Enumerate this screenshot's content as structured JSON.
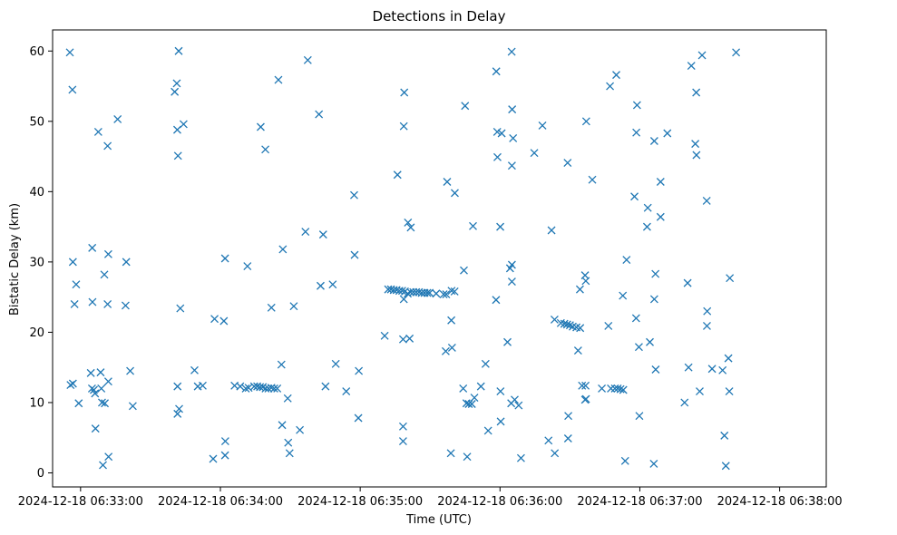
{
  "chart_data": {
    "type": "scatter",
    "title": "Detections in Delay",
    "xlabel": "Time (UTC)",
    "ylabel": "Bistatic Delay (km)",
    "marker": "x",
    "color": "#1f77b4",
    "grid": false,
    "x_unit": "seconds after 2024-12-18 06:33:00",
    "xlim": [
      -12,
      320
    ],
    "ylim": [
      -2,
      63
    ],
    "x_ticks": [
      {
        "value": 0,
        "label": "2024-12-18 06:33:00"
      },
      {
        "value": 60,
        "label": "2024-12-18 06:34:00"
      },
      {
        "value": 120,
        "label": "2024-12-18 06:35:00"
      },
      {
        "value": 180,
        "label": "2024-12-18 06:36:00"
      },
      {
        "value": 240,
        "label": "2024-12-18 06:37:00"
      },
      {
        "value": 300,
        "label": "2024-12-18 06:38:00"
      }
    ],
    "y_ticks": [
      {
        "value": 0,
        "label": "0"
      },
      {
        "value": 10,
        "label": "10"
      },
      {
        "value": 20,
        "label": "20"
      },
      {
        "value": 30,
        "label": "30"
      },
      {
        "value": 40,
        "label": "40"
      },
      {
        "value": 50,
        "label": "50"
      },
      {
        "value": 60,
        "label": "60"
      }
    ],
    "points": [
      [
        -4.6,
        59.8
      ],
      [
        -3.5,
        54.5
      ],
      [
        -3.3,
        30.0
      ],
      [
        -2.6,
        24.0
      ],
      [
        -1.9,
        26.8
      ],
      [
        -4.3,
        12.5
      ],
      [
        -3.3,
        12.7
      ],
      [
        -0.8,
        9.9
      ],
      [
        5.0,
        32.0
      ],
      [
        5.1,
        24.3
      ],
      [
        4.4,
        14.2
      ],
      [
        4.9,
        12.0
      ],
      [
        5.7,
        11.8
      ],
      [
        6.2,
        11.3
      ],
      [
        8.6,
        14.3
      ],
      [
        8.9,
        12.0
      ],
      [
        9.2,
        10.0
      ],
      [
        10.4,
        9.9
      ],
      [
        6.4,
        6.3
      ],
      [
        10.2,
        28.2
      ],
      [
        11.9,
        31.1
      ],
      [
        11.6,
        24.0
      ],
      [
        11.9,
        13.0
      ],
      [
        12.0,
        2.3
      ],
      [
        9.6,
        1.1
      ],
      [
        7.6,
        48.5
      ],
      [
        11.6,
        46.5
      ],
      [
        15.9,
        50.3
      ],
      [
        19.6,
        30.0
      ],
      [
        19.3,
        23.8
      ],
      [
        21.3,
        14.5
      ],
      [
        22.4,
        9.5
      ],
      [
        40.4,
        54.2
      ],
      [
        41.3,
        55.4
      ],
      [
        41.5,
        48.8
      ],
      [
        42.1,
        60.0
      ],
      [
        41.8,
        45.1
      ],
      [
        44.2,
        49.6
      ],
      [
        42.8,
        23.4
      ],
      [
        41.6,
        12.3
      ],
      [
        41.6,
        8.4
      ],
      [
        42.3,
        9.1
      ],
      [
        48.9,
        14.6
      ],
      [
        50.3,
        12.3
      ],
      [
        52.4,
        12.4
      ],
      [
        57.5,
        21.9
      ],
      [
        61.5,
        21.6
      ],
      [
        56.9,
        2.0
      ],
      [
        62.0,
        30.5
      ],
      [
        62.1,
        4.5
      ],
      [
        62.0,
        2.5
      ],
      [
        66.1,
        12.4
      ],
      [
        68.5,
        12.3
      ],
      [
        70.9,
        12.0
      ],
      [
        72.1,
        12.1
      ],
      [
        74.5,
        12.3
      ],
      [
        75.8,
        12.3
      ],
      [
        77.0,
        12.2
      ],
      [
        78.2,
        12.2
      ],
      [
        79.4,
        12.0
      ],
      [
        80.6,
        12.0
      ],
      [
        81.9,
        12.1
      ],
      [
        83.1,
        12.0
      ],
      [
        84.4,
        12.0
      ],
      [
        71.6,
        29.4
      ],
      [
        77.3,
        49.2
      ],
      [
        79.3,
        46.0
      ],
      [
        81.9,
        23.5
      ],
      [
        84.9,
        55.9
      ],
      [
        86.8,
        31.8
      ],
      [
        86.2,
        15.4
      ],
      [
        86.5,
        6.8
      ],
      [
        88.9,
        10.6
      ],
      [
        89.1,
        4.3
      ],
      [
        89.7,
        2.8
      ],
      [
        91.5,
        23.7
      ],
      [
        94.1,
        6.1
      ],
      [
        96.5,
        34.3
      ],
      [
        97.5,
        58.7
      ],
      [
        102.3,
        51.0
      ],
      [
        103.0,
        26.6
      ],
      [
        104.1,
        33.9
      ],
      [
        105.1,
        12.3
      ],
      [
        108.2,
        26.8
      ],
      [
        109.5,
        15.5
      ],
      [
        114.0,
        11.6
      ],
      [
        117.6,
        31.0
      ],
      [
        117.4,
        39.5
      ],
      [
        119.4,
        14.5
      ],
      [
        119.2,
        7.8
      ],
      [
        130.5,
        19.5
      ],
      [
        132.0,
        26.1
      ],
      [
        133.2,
        26.1
      ],
      [
        134.4,
        26.0
      ],
      [
        135.6,
        26.0
      ],
      [
        136.8,
        25.9
      ],
      [
        138.0,
        25.9
      ],
      [
        139.2,
        25.8
      ],
      [
        140.4,
        25.5
      ],
      [
        141.6,
        25.7
      ],
      [
        142.8,
        25.7
      ],
      [
        144.0,
        25.7
      ],
      [
        145.2,
        25.7
      ],
      [
        146.4,
        25.6
      ],
      [
        147.6,
        25.6
      ],
      [
        148.8,
        25.6
      ],
      [
        149.8,
        25.6
      ],
      [
        152.6,
        25.5
      ],
      [
        155.8,
        25.4
      ],
      [
        156.9,
        25.4
      ],
      [
        159.2,
        25.9
      ],
      [
        160.5,
        25.8
      ],
      [
        138.7,
        24.7
      ],
      [
        136.0,
        42.4
      ],
      [
        138.9,
        54.1
      ],
      [
        138.7,
        49.3
      ],
      [
        140.5,
        35.6
      ],
      [
        141.7,
        34.9
      ],
      [
        138.4,
        19.0
      ],
      [
        141.2,
        19.1
      ],
      [
        138.4,
        6.6
      ],
      [
        138.4,
        4.5
      ],
      [
        157.3,
        41.4
      ],
      [
        160.6,
        39.8
      ],
      [
        156.7,
        17.3
      ],
      [
        159.4,
        17.8
      ],
      [
        159.1,
        21.7
      ],
      [
        158.9,
        2.8
      ],
      [
        165.0,
        52.2
      ],
      [
        164.5,
        28.8
      ],
      [
        164.2,
        12.0
      ],
      [
        165.6,
        9.9
      ],
      [
        166.6,
        9.8
      ],
      [
        167.9,
        9.8
      ],
      [
        169.0,
        10.7
      ],
      [
        171.8,
        12.3
      ],
      [
        165.9,
        2.3
      ],
      [
        168.4,
        35.1
      ],
      [
        173.8,
        15.5
      ],
      [
        174.9,
        6.0
      ],
      [
        178.4,
        57.1
      ],
      [
        178.8,
        48.5
      ],
      [
        180.7,
        48.3
      ],
      [
        178.9,
        44.9
      ],
      [
        180.1,
        35.0
      ],
      [
        178.3,
        24.6
      ],
      [
        180.2,
        11.6
      ],
      [
        180.3,
        7.3
      ],
      [
        183.2,
        18.6
      ],
      [
        184.3,
        29.1
      ],
      [
        185.1,
        29.6
      ],
      [
        185.0,
        59.9
      ],
      [
        185.2,
        51.7
      ],
      [
        185.6,
        47.6
      ],
      [
        185.1,
        43.7
      ],
      [
        185.1,
        27.2
      ],
      [
        184.8,
        9.9
      ],
      [
        186.3,
        10.4
      ],
      [
        188.0,
        9.6
      ],
      [
        189.0,
        2.1
      ],
      [
        194.7,
        45.5
      ],
      [
        198.2,
        49.4
      ],
      [
        200.8,
        4.6
      ],
      [
        202.1,
        34.5
      ],
      [
        203.4,
        21.8
      ],
      [
        203.5,
        2.8
      ],
      [
        206.1,
        21.3
      ],
      [
        207.6,
        21.2
      ],
      [
        208.8,
        21.1
      ],
      [
        210.0,
        21.0
      ],
      [
        211.2,
        20.8
      ],
      [
        212.8,
        20.7
      ],
      [
        214.4,
        20.6
      ],
      [
        209.0,
        44.1
      ],
      [
        209.3,
        8.1
      ],
      [
        209.2,
        4.9
      ],
      [
        213.5,
        17.4
      ],
      [
        214.3,
        26.1
      ],
      [
        216.8,
        27.3
      ],
      [
        216.5,
        28.1
      ],
      [
        215.2,
        12.4
      ],
      [
        216.7,
        12.4
      ],
      [
        216.5,
        10.4
      ],
      [
        216.9,
        10.5
      ],
      [
        217.0,
        50.0
      ],
      [
        219.6,
        41.7
      ],
      [
        227.2,
        55.0
      ],
      [
        226.5,
        20.9
      ],
      [
        223.7,
        12.0
      ],
      [
        227.6,
        12.0
      ],
      [
        229.3,
        12.0
      ],
      [
        230.5,
        12.0
      ],
      [
        231.7,
        11.9
      ],
      [
        232.9,
        11.8
      ],
      [
        229.9,
        56.6
      ],
      [
        233.7,
        1.7
      ],
      [
        232.7,
        25.2
      ],
      [
        234.3,
        30.3
      ],
      [
        238.5,
        48.4
      ],
      [
        237.7,
        39.3
      ],
      [
        238.8,
        52.3
      ],
      [
        238.4,
        22.0
      ],
      [
        239.6,
        17.9
      ],
      [
        239.8,
        8.1
      ],
      [
        243.1,
        35.0
      ],
      [
        243.4,
        37.7
      ],
      [
        244.3,
        18.6
      ],
      [
        246.2,
        47.2
      ],
      [
        246.2,
        24.7
      ],
      [
        246.7,
        28.3
      ],
      [
        246.8,
        14.7
      ],
      [
        246.0,
        1.3
      ],
      [
        248.9,
        36.4
      ],
      [
        248.9,
        41.4
      ],
      [
        251.8,
        48.3
      ],
      [
        259.2,
        10.0
      ],
      [
        260.5,
        27.0
      ],
      [
        260.9,
        15.0
      ],
      [
        262.1,
        57.9
      ],
      [
        264.2,
        54.1
      ],
      [
        263.8,
        46.8
      ],
      [
        264.3,
        45.2
      ],
      [
        265.7,
        11.6
      ],
      [
        266.7,
        59.4
      ],
      [
        268.7,
        38.7
      ],
      [
        268.8,
        20.9
      ],
      [
        268.9,
        23.0
      ],
      [
        271.0,
        14.8
      ],
      [
        275.5,
        14.6
      ],
      [
        276.3,
        5.3
      ],
      [
        276.9,
        1.0
      ],
      [
        278.0,
        16.3
      ],
      [
        278.4,
        11.6
      ],
      [
        278.6,
        27.7
      ],
      [
        281.3,
        59.8
      ]
    ]
  }
}
